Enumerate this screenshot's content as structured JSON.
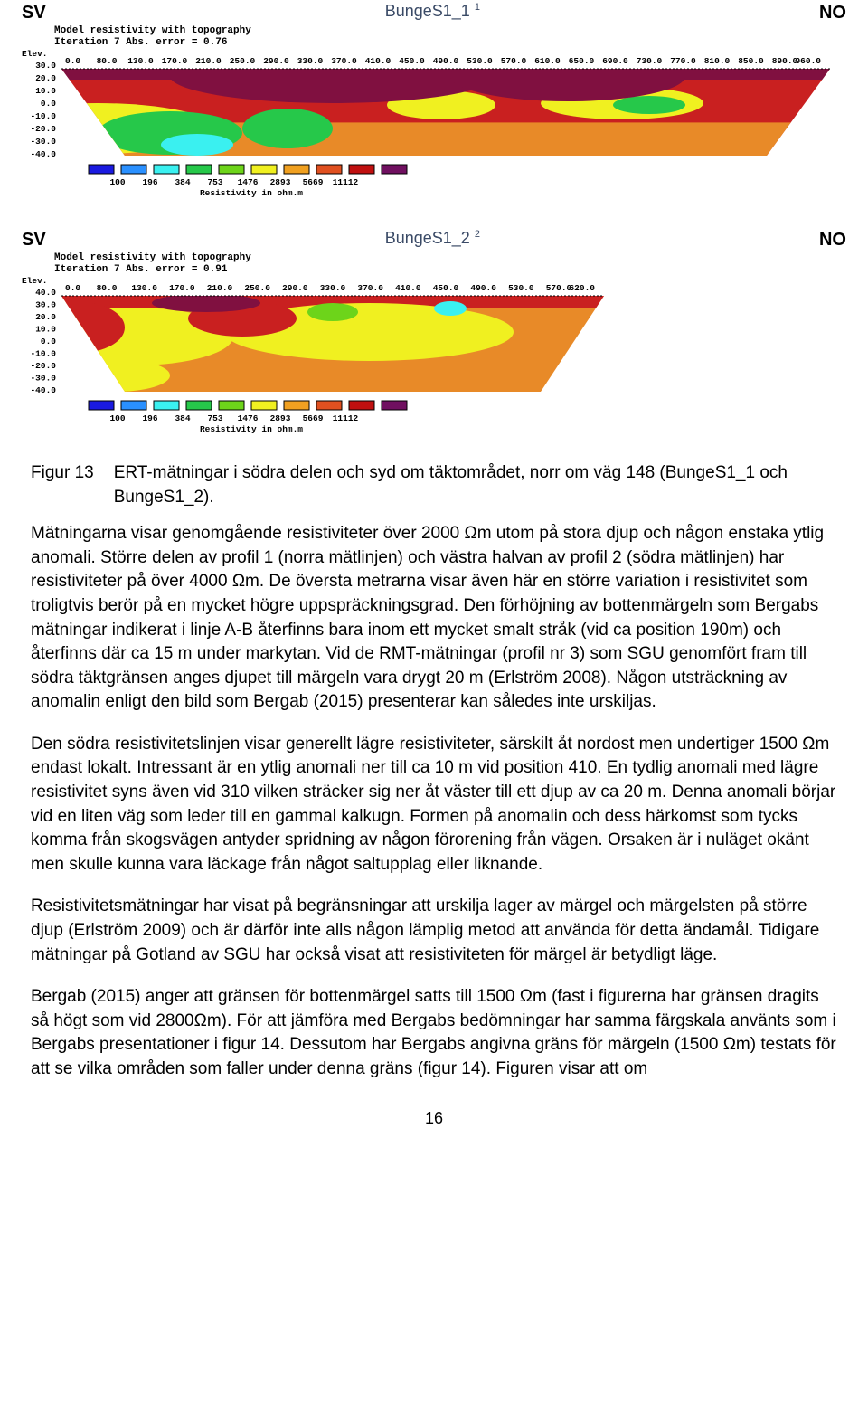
{
  "chart1": {
    "left_label": "SV",
    "center_title": "BungeS1_1",
    "sup": "1",
    "right_label": "NO",
    "meta1": "Model resistivity with topography",
    "meta2": "Iteration 7 Abs. error = 0.76",
    "elev_label": "Elev.",
    "y_ticks": [
      "30.0",
      "20.0",
      "10.0",
      "0.0",
      "-10.0",
      "-20.0",
      "-30.0",
      "-40.0"
    ],
    "x_first": "0.0",
    "x_ticks": [
      "80.0",
      "130.0",
      "170.0",
      "210.0",
      "250.0",
      "290.0",
      "330.0",
      "370.0",
      "410.0",
      "450.0",
      "490.0",
      "530.0",
      "570.0",
      "610.0",
      "650.0",
      "690.0",
      "730.0",
      "770.0",
      "810.0",
      "850.0",
      "890.0"
    ],
    "x_last": "960.0",
    "legend_values": [
      "100",
      "196",
      "384",
      "753",
      "1476",
      "2893",
      "5669",
      "11112"
    ],
    "legend_colors": [
      "#1a1ae0",
      "#2a90ff",
      "#3af0f0",
      "#26c84a",
      "#6dd41a",
      "#f0f020",
      "#f0a020",
      "#e05020",
      "#c01010",
      "#701060"
    ],
    "legend_caption": "Resistivity in ohm.m"
  },
  "chart2": {
    "left_label": "SV",
    "center_title": "BungeS1_2",
    "sup": "2",
    "right_label": "NO",
    "meta1": "Model resistivity with topography",
    "meta2": "Iteration 7 Abs. error = 0.91",
    "elev_label": "Elev.",
    "y_ticks": [
      "40.0",
      "30.0",
      "20.0",
      "10.0",
      "0.0",
      "-10.0",
      "-20.0",
      "-30.0",
      "-40.0"
    ],
    "x_first": "0.0",
    "x_ticks": [
      "80.0",
      "130.0",
      "170.0",
      "210.0",
      "250.0",
      "290.0",
      "330.0",
      "370.0",
      "410.0",
      "450.0",
      "490.0",
      "530.0",
      "570.0"
    ],
    "x_last": "620.0",
    "legend_values": [
      "100",
      "196",
      "384",
      "753",
      "1476",
      "2893",
      "5669",
      "11112"
    ],
    "legend_colors": [
      "#1a1ae0",
      "#2a90ff",
      "#3af0f0",
      "#26c84a",
      "#6dd41a",
      "#f0f020",
      "#f0a020",
      "#e05020",
      "#c01010",
      "#701060"
    ],
    "legend_caption": "Resistivity in ohm.m"
  },
  "caption": {
    "label": "Figur 13",
    "text": "ERT-mätningar i södra delen och syd om täktområdet, norr om väg 148 (BungeS1_1 och BungeS1_2)."
  },
  "para1": "Mätningarna visar genomgående resistiviteter över 2000 Ωm utom på stora djup och någon enstaka ytlig anomali. Större delen av profil 1 (norra mätlinjen) och västra halvan av profil 2 (södra mätlinjen) har resistiviteter på över 4000 Ωm. De översta metrarna visar även här en större variation i resistivitet som troligtvis berör på en mycket högre uppspräckningsgrad. Den förhöjning av bottenmärgeln som Bergabs mätningar indikerat i linje A-B återfinns bara inom ett mycket smalt stråk (vid ca position 190m) och återfinns där ca 15 m under markytan. Vid de RMT-mätningar (profil nr 3) som SGU genomfört fram till södra täktgränsen anges djupet till märgeln vara drygt 20 m (Erlström 2008). Någon utsträckning av anomalin enligt den bild som Bergab (2015) presenterar kan således inte urskiljas.",
  "para2": "Den södra resistivitetslinjen visar generellt lägre resistiviteter, särskilt åt nordost men undertiger 1500 Ωm endast lokalt. Intressant är en ytlig anomali ner till ca 10 m vid position 410. En tydlig anomali med lägre resistivitet syns även vid 310 vilken sträcker sig ner åt väster till ett djup av ca 20 m. Denna anomali börjar vid en liten väg som leder till en gammal kalkugn. Formen på anomalin och dess härkomst som tycks komma från skogsvägen antyder spridning av någon förorening från vägen. Orsaken är i nuläget okänt men skulle kunna vara läckage från något saltupplag eller liknande.",
  "para3": "Resistivitetsmätningar har visat på begränsningar att urskilja lager av märgel och märgelsten på större djup (Erlström 2009) och är därför inte alls någon lämplig metod att använda för detta ändamål. Tidigare mätningar på Gotland av SGU har också visat att resistiviteten för märgel är betydligt läge.",
  "para4": "Bergab (2015) anger att gränsen för bottenmärgel satts till 1500 Ωm (fast i figurerna har gränsen dragits så högt som vid 2800Ωm). För att jämföra med Bergabs bedömningar har samma färgskala använts som i Bergabs presentationer i figur 14. Dessutom har Bergabs angivna gräns för märgeln (1500 Ωm) testats för att se vilka områden som faller under denna gräns (figur 14). Figuren visar att om",
  "page_num": "16"
}
